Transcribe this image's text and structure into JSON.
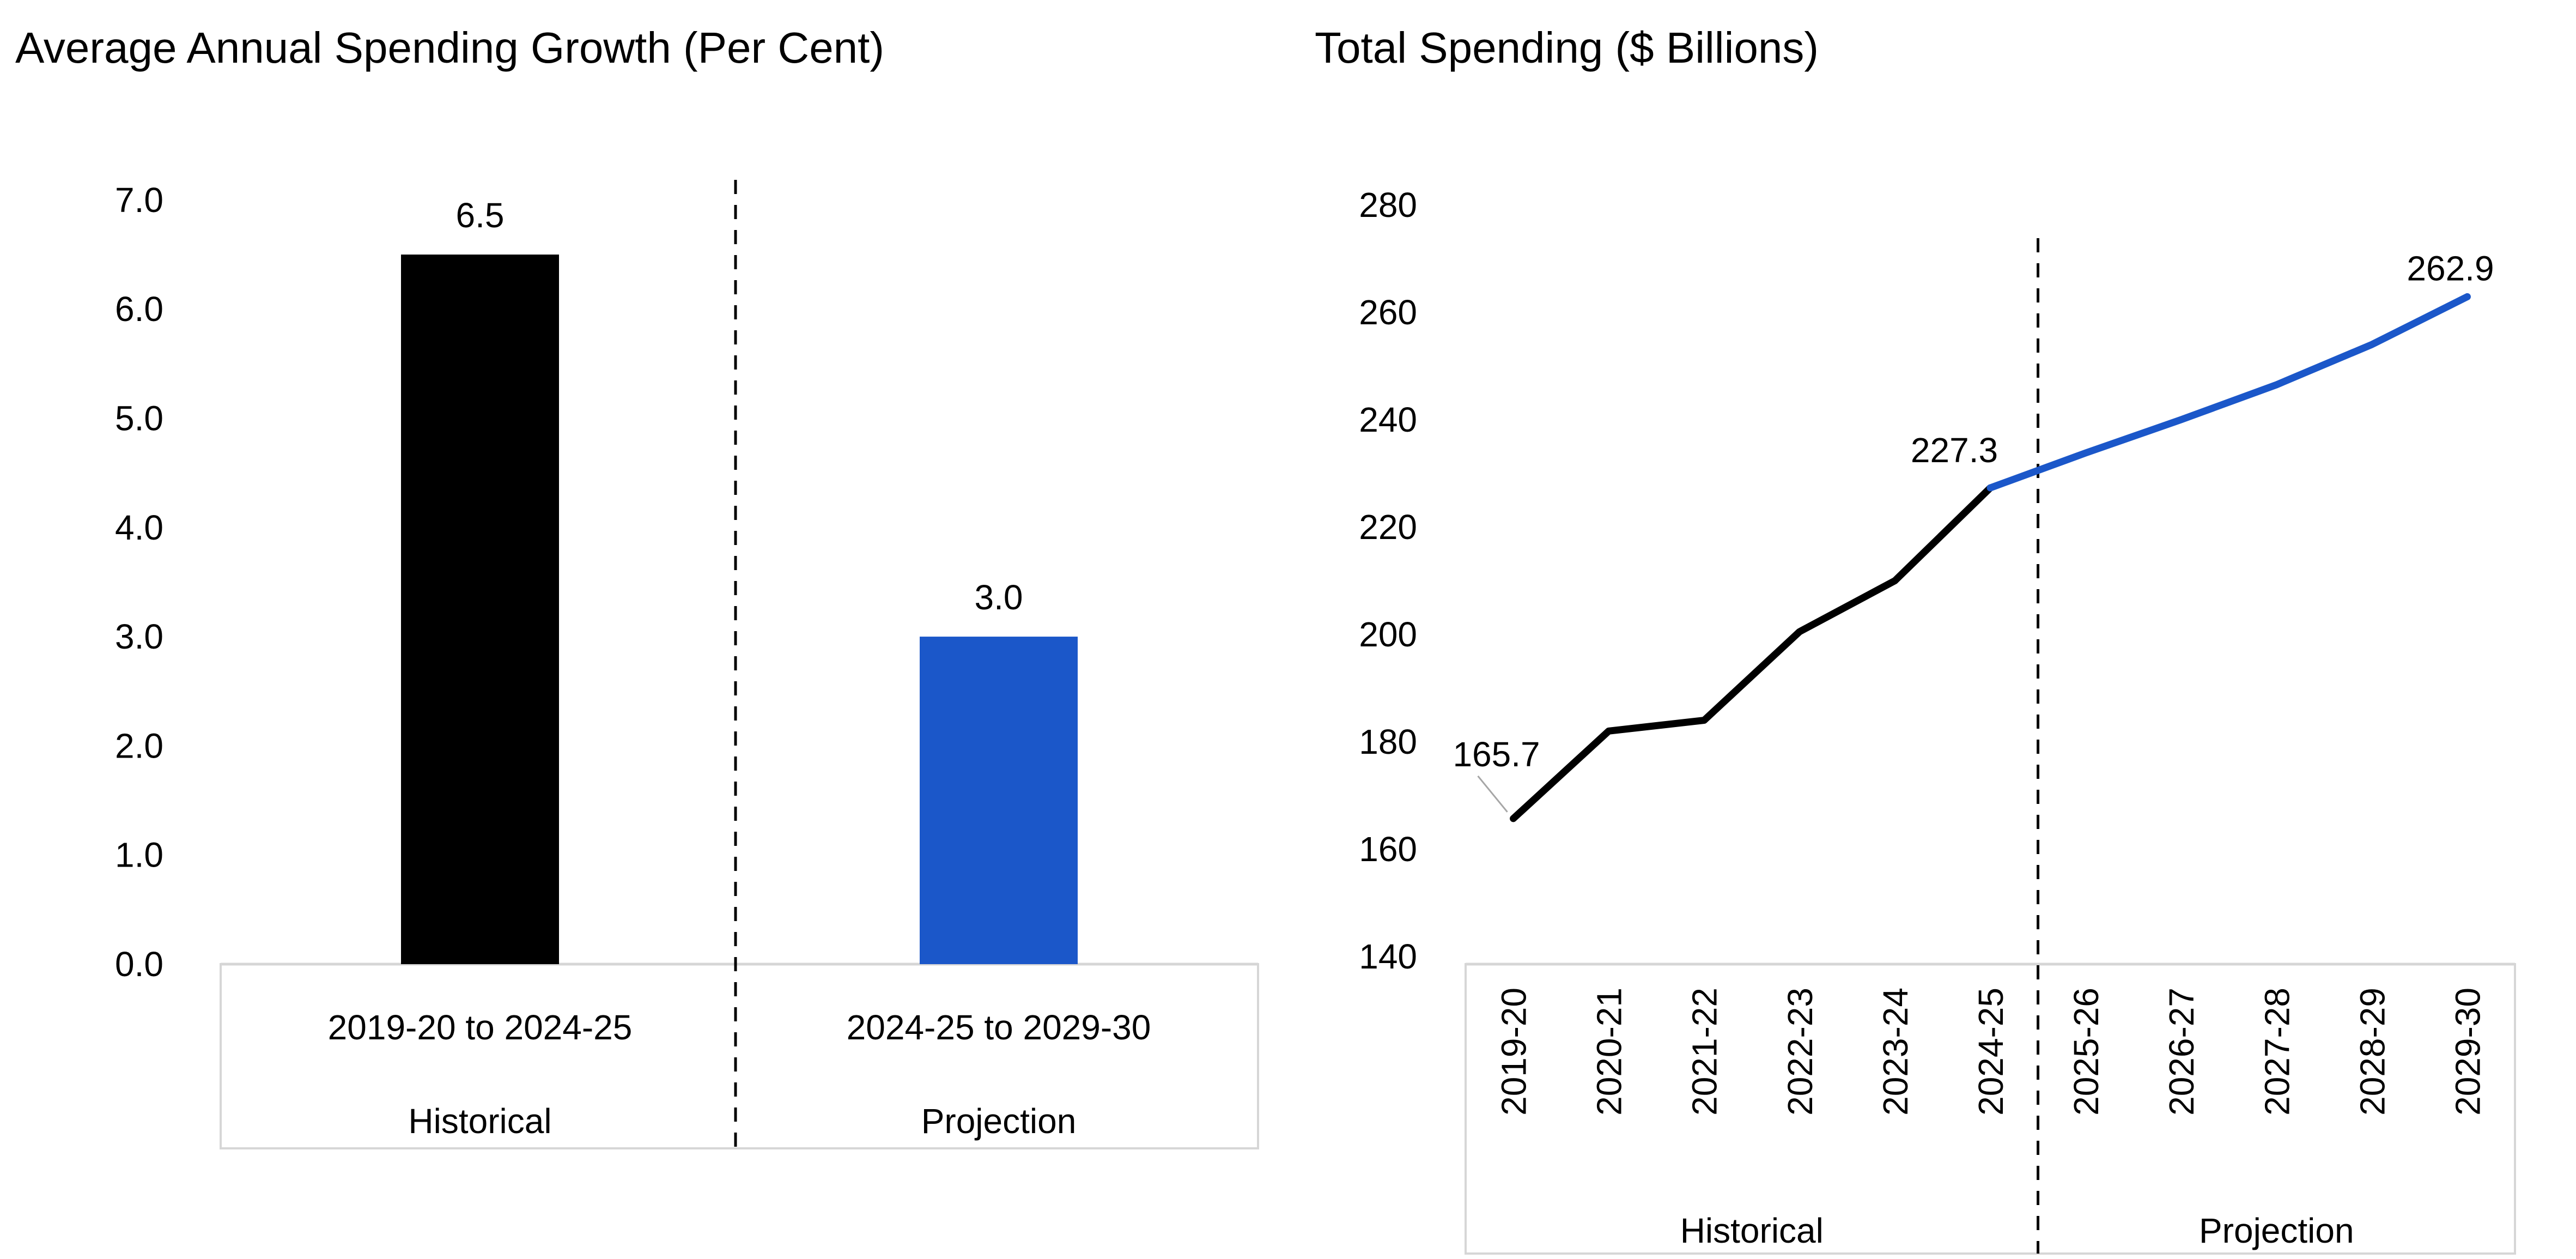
{
  "colors": {
    "historical_black": "#000000",
    "projection_blue": "#1B57C9",
    "axis_gray": "#D6D6D6",
    "leader_gray": "#A6A6A6",
    "dashed_line": "#000000"
  },
  "chart_data": [
    {
      "type": "bar",
      "title": "Average Annual Spending Growth (Per Cent)",
      "ylabel": "",
      "xlabel": "",
      "ylim": [
        0.0,
        7.0
      ],
      "y_tick_labels": [
        "7.0",
        "6.0",
        "5.0",
        "4.0",
        "3.0",
        "2.0",
        "1.0",
        "0.0"
      ],
      "grid": "off",
      "categories": [
        "2019-20 to 2024-25",
        "2024-25 to 2029-30"
      ],
      "group_labels": [
        "Historical",
        "Projection"
      ],
      "values": [
        6.5,
        3.0
      ],
      "value_labels": [
        "6.5",
        "3.0"
      ],
      "bar_colors": [
        "#000000",
        "#1B57C9"
      ],
      "annotations": "vertical black dashed line separating Historical and Projection halves"
    },
    {
      "type": "line",
      "title": "Total Spending ($ Billions)",
      "ylabel": "",
      "xlabel": "",
      "ylim": [
        140,
        280
      ],
      "y_tick_labels": [
        "280",
        "260",
        "240",
        "220",
        "200",
        "180",
        "160",
        "140"
      ],
      "grid": "off",
      "categories": [
        "2019-20",
        "2020-21",
        "2021-22",
        "2022-23",
        "2023-24",
        "2024-25",
        "2025-26",
        "2026-27",
        "2027-28",
        "2028-29",
        "2029-30"
      ],
      "group_labels": [
        "Historical",
        "Projection"
      ],
      "series": [
        {
          "name": "Historical",
          "color": "#000000",
          "start_index": 0,
          "values": [
            165.7,
            182.0,
            184.0,
            200.5,
            210.0,
            227.3
          ]
        },
        {
          "name": "Projection",
          "color": "#1B57C9",
          "start_index": 5,
          "values": [
            227.3,
            233.8,
            240.0,
            246.5,
            254.0,
            262.9
          ]
        }
      ],
      "point_labels": [
        {
          "index": 0,
          "text": "165.7",
          "leader": true
        },
        {
          "index": 5,
          "text": "227.3",
          "leader": false
        },
        {
          "index": 10,
          "text": "262.9",
          "leader": false
        }
      ],
      "annotations": "vertical black dashed line between 2024-25 and 2025-26 separating Historical and Projection"
    }
  ]
}
